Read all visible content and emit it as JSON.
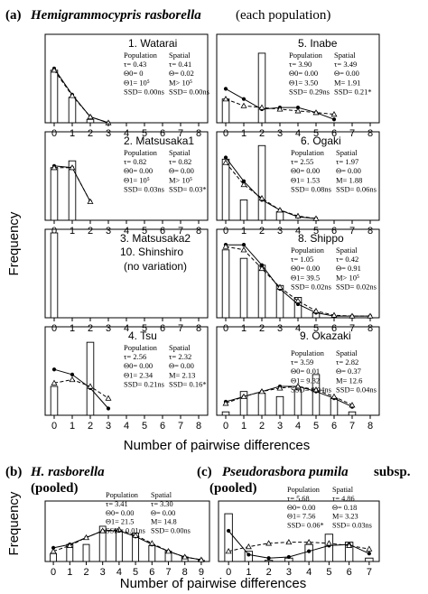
{
  "figure": {
    "panel_a_label": "(a)",
    "panel_a_title": "Hemigrammocypris rasborella",
    "panel_a_suffix": "(each population)",
    "panel_b_label": "(b)",
    "panel_b_title": "H. rasborella",
    "panel_b_suffix": "(pooled)",
    "panel_c_label": "(c)",
    "panel_c_title": "Pseudorasbora pumila",
    "panel_c_suffix": "subsp.",
    "panel_c_suffix2": "(pooled)",
    "ylabel_a": "Frequency",
    "xlabel_a": "Number of pairwise differences",
    "ylabel_b": "Frequency",
    "xlabel_b": "Number of pairwise differences",
    "frequency_scale": "arbitrary 0-1 (no y-axis ticks printed)"
  },
  "chart_data": [
    {
      "id": "watarai",
      "type": "bar",
      "name": "1. Watarai",
      "categories": [
        "0",
        "1",
        "2",
        "3",
        "4",
        "5",
        "6",
        "7",
        "8"
      ],
      "values": [
        0.62,
        0.3,
        0.04,
        0,
        0,
        0,
        0,
        0,
        0
      ],
      "lines": [
        {
          "style": "solid",
          "marker": "dot",
          "x": [
            0,
            1,
            2,
            3
          ],
          "y": [
            0.64,
            0.33,
            0.07,
            0.0
          ]
        },
        {
          "style": "dashed",
          "marker": "triangle",
          "x": [
            0,
            1,
            2,
            3
          ],
          "y": [
            0.62,
            0.32,
            0.07,
            0.0
          ]
        }
      ],
      "stats": {
        "pop_header": "Population",
        "spa_header": "Spatial",
        "rows": [
          {
            "pop": "τ= 0.43",
            "spa": "τ= 0.41"
          },
          {
            "pop": "Θ0= 0",
            "spa": "Θ= 0.02"
          },
          {
            "pop": "Θ1= 10⁵",
            "spa": "M> 10⁵"
          },
          {
            "pop": "SSD= 0.00ns",
            "spa": "SSD= 0.00ns"
          }
        ]
      },
      "xlim": [
        -0.5,
        8.5
      ],
      "ylim": [
        0,
        1
      ]
    },
    {
      "id": "inabe",
      "type": "bar",
      "name": "5. Inabe",
      "categories": [
        "0",
        "1",
        "2",
        "3",
        "4",
        "5",
        "6",
        "7",
        "8"
      ],
      "values": [
        0.28,
        0,
        0.82,
        0,
        0,
        0,
        0,
        0,
        0
      ],
      "lines": [
        {
          "style": "solid",
          "marker": "dot",
          "x": [
            0,
            1,
            2,
            3,
            4,
            5,
            6
          ],
          "y": [
            0.4,
            0.28,
            0.16,
            0.18,
            0.18,
            0.12,
            0.04
          ]
        },
        {
          "style": "dashed",
          "marker": "triangle",
          "x": [
            0,
            1,
            2,
            3,
            4,
            5,
            6
          ],
          "y": [
            0.28,
            0.2,
            0.18,
            0.16,
            0.14,
            0.12,
            0.1
          ]
        }
      ],
      "stats": {
        "pop_header": "Population",
        "spa_header": "Spatial",
        "rows": [
          {
            "pop": "τ= 3.90",
            "spa": "τ= 3.49"
          },
          {
            "pop": "Θ0= 0.00",
            "spa": "Θ= 0.00"
          },
          {
            "pop": "Θ1= 3.50",
            "spa": "M= 1.91"
          },
          {
            "pop": "SSD= 0.29ns",
            "spa": "SSD= 0.21*"
          }
        ]
      },
      "xlim": [
        -0.5,
        8.5
      ],
      "ylim": [
        0,
        1
      ]
    },
    {
      "id": "matsusaka1",
      "type": "bar",
      "name": "2. Matsusaka1",
      "categories": [
        "0",
        "1",
        "2",
        "3",
        "4",
        "5",
        "6",
        "7",
        "8"
      ],
      "values": [
        0.62,
        0.7,
        0,
        0,
        0,
        0,
        0,
        0,
        0
      ],
      "lines": [
        {
          "style": "solid",
          "marker": "dot",
          "x": [
            0,
            1,
            2
          ],
          "y": [
            0.64,
            0.62,
            0.22
          ]
        },
        {
          "style": "dashed",
          "marker": "triangle",
          "x": [
            0,
            1,
            2
          ],
          "y": [
            0.62,
            0.62,
            0.22
          ]
        }
      ],
      "stats": {
        "pop_header": "Population",
        "spa_header": "Spatial",
        "rows": [
          {
            "pop": "τ= 0.82",
            "spa": "τ= 0.82"
          },
          {
            "pop": "Θ0= 0.00",
            "spa": "Θ= 0.00"
          },
          {
            "pop": "Θ1= 10⁵",
            "spa": "M> 10⁵"
          },
          {
            "pop": "SSD= 0.03ns",
            "spa": "SSD= 0.03*"
          }
        ]
      },
      "xlim": [
        -0.5,
        8.5
      ],
      "ylim": [
        0,
        1
      ]
    },
    {
      "id": "ogaki",
      "type": "bar",
      "name": "6. Ogaki",
      "categories": [
        "0",
        "1",
        "2",
        "3",
        "4",
        "5",
        "6",
        "7",
        "8"
      ],
      "values": [
        0.72,
        0.24,
        0.88,
        0.1,
        0,
        0,
        0,
        0,
        0
      ],
      "lines": [
        {
          "style": "solid",
          "marker": "dot",
          "x": [
            0,
            1,
            2,
            3,
            4,
            5
          ],
          "y": [
            0.74,
            0.46,
            0.24,
            0.12,
            0.04,
            0.02
          ]
        },
        {
          "style": "dashed",
          "marker": "triangle",
          "x": [
            0,
            1,
            2,
            3,
            4,
            5
          ],
          "y": [
            0.68,
            0.42,
            0.26,
            0.12,
            0.05,
            0.02
          ]
        }
      ],
      "stats": {
        "pop_header": "Population",
        "spa_header": "Spatial",
        "rows": [
          {
            "pop": "τ= 2.55",
            "spa": "τ= 1.97"
          },
          {
            "pop": "Θ0= 0.00",
            "spa": "Θ= 0.00"
          },
          {
            "pop": "Θ1= 1.53",
            "spa": "M= 1.88"
          },
          {
            "pop": "SSD= 0.08ns",
            "spa": "SSD= 0.06ns"
          }
        ]
      },
      "xlim": [
        -0.5,
        8.5
      ],
      "ylim": [
        0,
        1
      ]
    },
    {
      "id": "matsusaka2",
      "type": "bar",
      "name": "3. Matsusaka2",
      "name2": "10. Shinshiro",
      "note": "(no variation)",
      "categories": [
        "0",
        "1",
        "2",
        "3",
        "4",
        "5",
        "6",
        "7",
        "8"
      ],
      "values": [
        1.0,
        0,
        0,
        0,
        0,
        0,
        0,
        0,
        0
      ],
      "lines": [],
      "xlim": [
        -0.5,
        8.5
      ],
      "ylim": [
        0,
        1
      ]
    },
    {
      "id": "shippo",
      "type": "bar",
      "name": "8. Shippo",
      "categories": [
        "0",
        "1",
        "2",
        "3",
        "4",
        "5",
        "6",
        "7",
        "8"
      ],
      "values": [
        0.8,
        0.7,
        0.62,
        0.38,
        0.24,
        0.06,
        0,
        0,
        0
      ],
      "lines": [
        {
          "style": "solid",
          "marker": "dot",
          "x": [
            0,
            1,
            2,
            3,
            4,
            5,
            6,
            7,
            8
          ],
          "y": [
            0.86,
            0.86,
            0.62,
            0.34,
            0.16,
            0.06,
            0.02,
            0.02,
            0.02
          ]
        },
        {
          "style": "dashed",
          "marker": "triangle",
          "x": [
            0,
            1,
            2,
            3,
            4,
            5,
            6,
            7,
            8
          ],
          "y": [
            0.84,
            0.8,
            0.58,
            0.36,
            0.2,
            0.08,
            0.03,
            0.02,
            0.02
          ]
        }
      ],
      "stats": {
        "pop_header": "Population",
        "spa_header": "Spatial",
        "rows": [
          {
            "pop": "τ= 1.05",
            "spa": "τ= 0.42"
          },
          {
            "pop": "Θ0= 0.00",
            "spa": "Θ= 0.91"
          },
          {
            "pop": "Θ1= 39.5",
            "spa": "M> 10⁵"
          },
          {
            "pop": "SSD= 0.02ns",
            "spa": "SSD= 0.02ns"
          }
        ]
      },
      "xlim": [
        -0.5,
        8.5
      ],
      "ylim": [
        0,
        1
      ]
    },
    {
      "id": "tsu",
      "type": "bar",
      "name": "4. Tsu",
      "categories": [
        "0",
        "1",
        "2",
        "3",
        "4",
        "5",
        "6",
        "7",
        "8"
      ],
      "values": [
        0.34,
        0,
        0.86,
        0,
        0,
        0,
        0,
        0,
        0
      ],
      "lines": [
        {
          "style": "solid",
          "marker": "dot",
          "x": [
            0,
            1,
            2,
            3
          ],
          "y": [
            0.54,
            0.48,
            0.32,
            0.08
          ]
        },
        {
          "style": "dashed",
          "marker": "triangle",
          "x": [
            0,
            1,
            2,
            3
          ],
          "y": [
            0.38,
            0.42,
            0.34,
            0.2
          ]
        }
      ],
      "stats": {
        "pop_header": "Population",
        "spa_header": "Spatial",
        "rows": [
          {
            "pop": "τ= 2.56",
            "spa": "τ= 2.32"
          },
          {
            "pop": "Θ0= 0.00",
            "spa": "Θ= 0.00"
          },
          {
            "pop": "Θ1= 2.34",
            "spa": "M= 2.13"
          },
          {
            "pop": "SSD= 0.21ns",
            "spa": "SSD= 0.16*"
          }
        ]
      },
      "xlim": [
        -0.5,
        8.5
      ],
      "ylim": [
        0,
        1
      ]
    },
    {
      "id": "okazaki",
      "type": "bar",
      "name": "9. Okazaki",
      "categories": [
        "0",
        "1",
        "2",
        "3",
        "4",
        "5",
        "6",
        "7",
        "8"
      ],
      "values": [
        0.04,
        0.28,
        0.26,
        0.22,
        0.3,
        0.48,
        0.2,
        0.04,
        0
      ],
      "lines": [
        {
          "style": "solid",
          "marker": "dot",
          "x": [
            0,
            1,
            2,
            3,
            4,
            5,
            6,
            7
          ],
          "y": [
            0.16,
            0.22,
            0.28,
            0.34,
            0.34,
            0.28,
            0.2,
            0.1
          ]
        },
        {
          "style": "dashed",
          "marker": "triangle",
          "x": [
            0,
            1,
            2,
            3,
            4,
            5,
            6,
            7
          ],
          "y": [
            0.14,
            0.22,
            0.28,
            0.32,
            0.34,
            0.3,
            0.22,
            0.12
          ]
        }
      ],
      "stats": {
        "pop_header": "Population",
        "spa_header": "Spatial",
        "rows": [
          {
            "pop": "τ= 3.59",
            "spa": "τ= 2.82"
          },
          {
            "pop": "Θ0= 0.01",
            "spa": "Θ= 0.37"
          },
          {
            "pop": "Θ1= 9.32",
            "spa": "M= 12.6"
          },
          {
            "pop": "SSD= 0.04ns",
            "spa": "SSD= 0.04ns"
          }
        ]
      },
      "xlim": [
        -0.5,
        8.5
      ],
      "ylim": [
        0,
        1
      ]
    },
    {
      "id": "hras_pooled",
      "type": "bar",
      "name": "",
      "categories": [
        "0",
        "1",
        "2",
        "3",
        "4",
        "5",
        "6",
        "7",
        "8",
        "9"
      ],
      "values": [
        0.14,
        0.3,
        0.3,
        0.62,
        0.54,
        0.5,
        0.28,
        0.18,
        0.08,
        0.02
      ],
      "lines": [
        {
          "style": "solid",
          "marker": "dot",
          "x": [
            0,
            1,
            2,
            3,
            4,
            5,
            6,
            7,
            8,
            9
          ],
          "y": [
            0.24,
            0.3,
            0.42,
            0.54,
            0.54,
            0.44,
            0.3,
            0.18,
            0.08,
            0.03
          ]
        },
        {
          "style": "dashed",
          "marker": "triangle",
          "x": [
            0,
            1,
            2,
            3,
            4,
            5,
            6,
            7,
            8,
            9
          ],
          "y": [
            0.18,
            0.28,
            0.42,
            0.54,
            0.56,
            0.46,
            0.32,
            0.18,
            0.08,
            0.03
          ]
        }
      ],
      "stats": {
        "pop_header": "Population",
        "spa_header": "Spatial",
        "rows": [
          {
            "pop": "τ= 3.41",
            "spa": "τ= 3.30"
          },
          {
            "pop": "Θ0= 0.00",
            "spa": "Θ= 0.00"
          },
          {
            "pop": "Θ1= 21.5",
            "spa": "M= 14.8"
          },
          {
            "pop": "SSD= 0.01ns",
            "spa": "SSD= 0.00ns"
          }
        ]
      },
      "xlim": [
        -0.5,
        9.5
      ],
      "ylim": [
        0,
        1
      ]
    },
    {
      "id": "ppum_pooled",
      "type": "bar",
      "name": "",
      "categories": [
        "0",
        "1",
        "2",
        "3",
        "4",
        "5",
        "6",
        "7"
      ],
      "values": [
        0.84,
        0.18,
        0.02,
        0.06,
        0.3,
        0.48,
        0.34,
        0.06
      ],
      "lines": [
        {
          "style": "solid",
          "marker": "dot",
          "x": [
            0,
            1,
            2,
            3,
            4,
            5,
            6,
            7
          ],
          "y": [
            0.54,
            0.12,
            0.06,
            0.08,
            0.18,
            0.28,
            0.3,
            0.14
          ]
        },
        {
          "style": "dashed",
          "marker": "triangle",
          "x": [
            0,
            1,
            2,
            3,
            4,
            5,
            6,
            7
          ],
          "y": [
            0.18,
            0.26,
            0.32,
            0.34,
            0.34,
            0.32,
            0.28,
            0.22
          ]
        }
      ],
      "stats": {
        "pop_header": "Population",
        "spa_header": "Spatial",
        "rows": [
          {
            "pop": "τ= 5.68",
            "spa": "τ= 4.86"
          },
          {
            "pop": "Θ0= 0.00",
            "spa": "Θ= 0.18"
          },
          {
            "pop": "Θ1= 7.56",
            "spa": "M= 3.23"
          },
          {
            "pop": "SSD= 0.06*",
            "spa": "SSD= 0.03ns"
          }
        ]
      },
      "xlim": [
        -0.5,
        7.5
      ],
      "ylim": [
        0,
        1
      ]
    }
  ]
}
